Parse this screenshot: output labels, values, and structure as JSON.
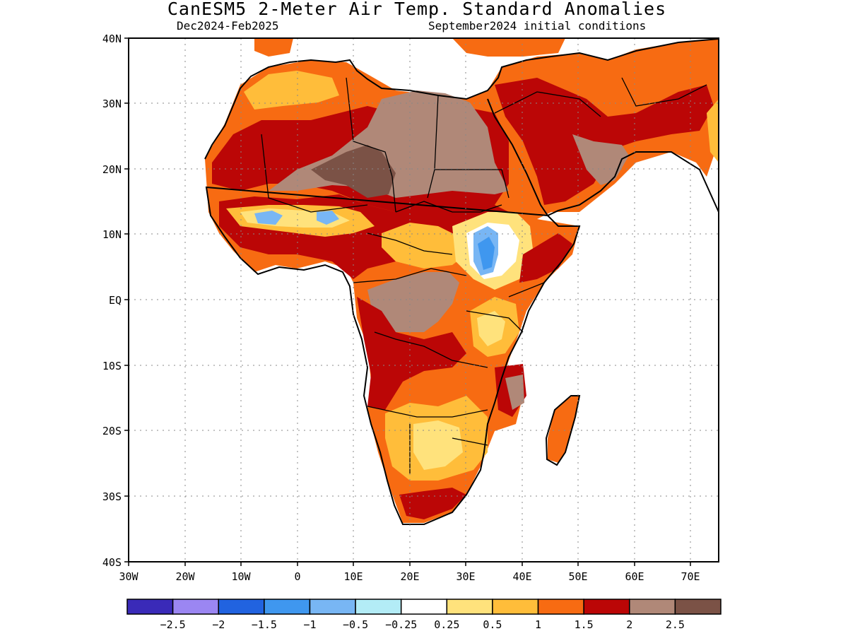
{
  "title": "CanESM5 2-Meter Air Temp. Standard Anomalies",
  "subtitle_left": "Dec2024-Feb2025",
  "subtitle_right": "September2024 initial conditions",
  "map": {
    "lon_range": [
      -30,
      75
    ],
    "lat_range": [
      -40,
      40
    ],
    "lat_ticks": [
      "40N",
      "30N",
      "20N",
      "10N",
      "EQ",
      "10S",
      "20S",
      "30S",
      "40S"
    ],
    "lon_ticks": [
      "30W",
      "20W",
      "10W",
      "0",
      "10E",
      "20E",
      "30E",
      "40E",
      "50E",
      "60E",
      "70E"
    ],
    "grid": "dotted"
  },
  "colorbar": {
    "colors": [
      "#3a2ab8",
      "#9b86f2",
      "#2163e0",
      "#3f97ef",
      "#78b6f4",
      "#b3ecf6",
      "#ffffff",
      "#ffe27c",
      "#ffbd3a",
      "#f76b12",
      "#bb0606",
      "#b08878",
      "#7b5246"
    ],
    "labels": [
      "-2.5",
      "-2",
      "-1.5",
      "-1",
      "-0.5",
      "-0.25",
      "0.25",
      "0.5",
      "1",
      "1.5",
      "2",
      "2.5"
    ]
  },
  "legend_colors": {
    "water": "#ffffff",
    "neutral": "#ffffff",
    "warm_0.5": "#ffe27c",
    "warm_1": "#ffbd3a",
    "warm_1.5": "#f76b12",
    "warm_2": "#bb0606",
    "warm_2.5": "#b08878",
    "warm_max": "#7b5246",
    "cold_core": "#78b6f4"
  }
}
